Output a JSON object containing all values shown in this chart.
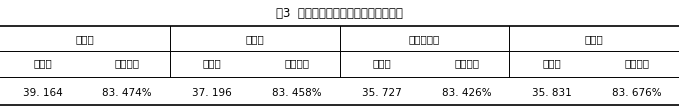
{
  "title": "表3  几种测量方法的标准差和变异系数",
  "col_groups": [
    {
      "label": "系数法",
      "span": 2
    },
    {
      "label": "方格法",
      "span": 2
    },
    {
      "label": "回归分析法",
      "span": 2
    },
    {
      "label": "仪器法",
      "span": 2
    }
  ],
  "sub_headers": [
    "标准差",
    "变异系数",
    "标准差",
    "变异系数",
    "标准差",
    "变异系数",
    "标准差",
    "变异系数"
  ],
  "data_row": [
    "39. 164",
    "83. 474%",
    "37. 196",
    "83. 458%",
    "35. 727",
    "83. 426%",
    "35. 831",
    "83. 676%"
  ],
  "background_color": "#ffffff",
  "text_color": "#000000",
  "line_color": "#000000",
  "title_fontsize": 8.5,
  "header_fontsize": 7.5,
  "data_fontsize": 7.5
}
